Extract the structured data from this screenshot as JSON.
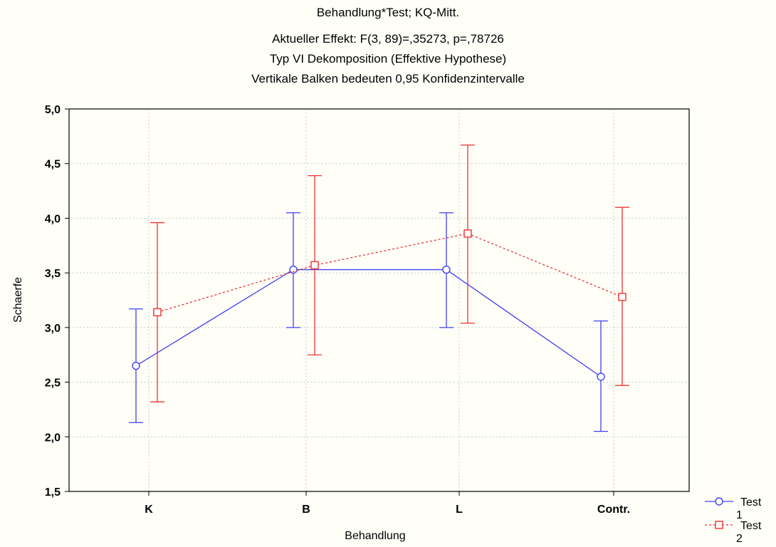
{
  "chart_data": {
    "type": "line",
    "title_lines": [
      "Behandlung*Test; KQ-Mitt.",
      "Aktueller Effekt: F(3, 89)=,35273, p=,78726",
      "Typ VI Dekomposition (Effektive Hypothese)",
      "Vertikale Balken bedeuten 0,95 Konfidenzintervalle"
    ],
    "xlabel": "Behandlung",
    "ylabel": "Schaerfe",
    "categories": [
      "K",
      "B",
      "L",
      "Contr."
    ],
    "ylim": [
      1.5,
      5.0
    ],
    "yticks": [
      1.5,
      2.0,
      2.5,
      3.0,
      3.5,
      4.0,
      4.5,
      5.0
    ],
    "ytick_labels": [
      "1,5",
      "2,0",
      "2,5",
      "3,0",
      "3,5",
      "4,0",
      "4,5",
      "5,0"
    ],
    "grid": true,
    "legend_position": "right, bottom",
    "series": [
      {
        "name": "Test 1",
        "legend_lines": [
          "Test",
          "1"
        ],
        "color": "#4040f0",
        "marker": "circle",
        "line_style": "solid",
        "values": [
          2.65,
          3.53,
          3.53,
          2.55
        ],
        "ci_low": [
          2.13,
          3.0,
          3.0,
          2.05
        ],
        "ci_high": [
          3.17,
          4.05,
          4.05,
          3.06
        ]
      },
      {
        "name": "Test 2",
        "legend_lines": [
          "Test",
          "2"
        ],
        "color": "#f03030",
        "marker": "square",
        "line_style": "dashed",
        "values": [
          3.14,
          3.57,
          3.86,
          3.28
        ],
        "ci_low": [
          2.32,
          2.75,
          3.04,
          2.47
        ],
        "ci_high": [
          3.96,
          4.39,
          4.67,
          4.1
        ]
      }
    ]
  }
}
